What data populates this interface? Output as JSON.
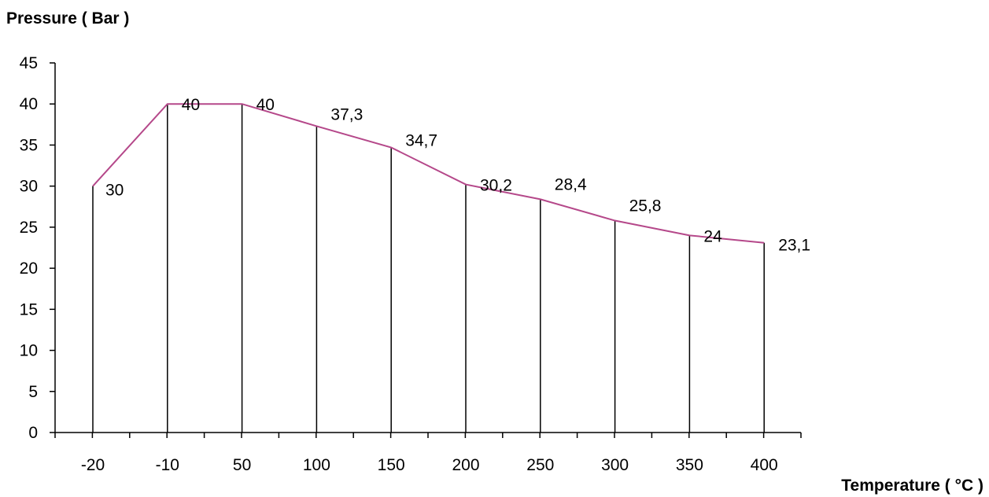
{
  "chart_data": {
    "type": "line",
    "categories": [
      "-20",
      "-10",
      "50",
      "100",
      "150",
      "200",
      "250",
      "300",
      "350",
      "400"
    ],
    "values": [
      30,
      40,
      40,
      37.3,
      34.7,
      30.2,
      28.4,
      25.8,
      24,
      23.1
    ],
    "data_labels": [
      "30",
      "40",
      "40",
      "37,3",
      "34,7",
      "30,2",
      "28,4",
      "25,8",
      "24",
      "23,1"
    ],
    "y_ticks": [
      "0",
      "5",
      "10",
      "15",
      "20",
      "25",
      "30",
      "35",
      "40",
      "45"
    ],
    "xlabel": "Temperature ( °C )",
    "ylabel": "Pressure ( Bar )",
    "ylim": [
      0,
      45
    ],
    "line_color": "#b5488a",
    "drop_lines": true,
    "grid": false
  }
}
